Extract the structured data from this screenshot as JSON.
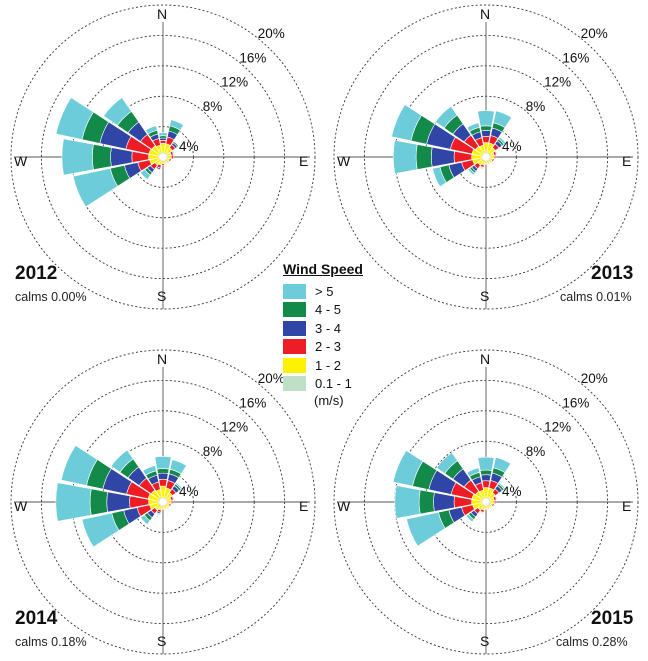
{
  "legend": {
    "title": "Wind Speed",
    "units": "(m/s)",
    "bins": [
      {
        "label": "> 5",
        "color": "#6cccd9"
      },
      {
        "label": "4 - 5",
        "color": "#138a4a"
      },
      {
        "label": "3 - 4",
        "color": "#2f46a6"
      },
      {
        "label": "2 - 3",
        "color": "#ee1c24"
      },
      {
        "label": "1 - 2",
        "color": "#fff200"
      },
      {
        "label": "0.1 - 1",
        "color": "#bfe0c5"
      }
    ]
  },
  "chart_data": [
    {
      "type": "windrose",
      "year": "2012",
      "calms": "calms 0.00%",
      "ring_labels": [
        "4%",
        "8%",
        "12%",
        "16%",
        "20%"
      ],
      "compass": [
        "N",
        "E",
        "S",
        "W"
      ],
      "rmax": 20,
      "directions": [
        "N",
        "NNE",
        "NE",
        "ENE",
        "E",
        "ESE",
        "SE",
        "SSE",
        "S",
        "SSW",
        "SW",
        "WSW",
        "W",
        "WNW",
        "NW",
        "NNW"
      ],
      "series": [
        {
          "name": "0.1 - 1",
          "values": [
            0.3,
            0.3,
            0.3,
            0.3,
            0.3,
            0.3,
            0.3,
            0.3,
            0.3,
            0.3,
            0.3,
            0.3,
            0.3,
            0.3,
            0.3,
            0.3
          ]
        },
        {
          "name": "1 - 2",
          "values": [
            1.5,
            1.5,
            1.2,
            0.8,
            0.8,
            0.6,
            0.6,
            0.6,
            0.6,
            0.8,
            1.0,
            1.5,
            1.6,
            1.6,
            1.5,
            1.3
          ]
        },
        {
          "name": "2 - 3",
          "values": [
            0.4,
            0.9,
            0.5,
            0.3,
            0.3,
            0.2,
            0.1,
            0.1,
            0.2,
            0.4,
            0.7,
            1.6,
            2.2,
            3.1,
            1.8,
            0.9
          ]
        },
        {
          "name": "3 - 4",
          "values": [
            0.3,
            0.8,
            0.3,
            0.1,
            0.0,
            0.0,
            0.0,
            0.0,
            0.0,
            0.2,
            0.5,
            1.8,
            2.8,
            3.5,
            2.0,
            0.6
          ]
        },
        {
          "name": "4 - 5",
          "values": [
            0.3,
            0.7,
            0.2,
            0.0,
            0.0,
            0.0,
            0.0,
            0.0,
            0.0,
            0.1,
            0.4,
            1.9,
            2.4,
            2.4,
            1.7,
            0.5
          ]
        },
        {
          "name": "> 5",
          "values": [
            0.4,
            0.8,
            0.1,
            0.0,
            0.0,
            0.0,
            0.0,
            0.0,
            0.0,
            0.1,
            0.7,
            5.0,
            4.0,
            3.5,
            2.2,
            0.6
          ]
        }
      ]
    },
    {
      "type": "windrose",
      "year": "2013",
      "calms": "calms 0.01%",
      "ring_labels": [
        "4%",
        "8%",
        "12%",
        "16%",
        "20%"
      ],
      "compass": [
        "N",
        "E",
        "S",
        "W"
      ],
      "rmax": 20,
      "directions": [
        "N",
        "NNE",
        "NE",
        "ENE",
        "E",
        "ESE",
        "SE",
        "SSE",
        "S",
        "SSW",
        "SW",
        "WSW",
        "W",
        "WNW",
        "NW",
        "NNW"
      ],
      "series": [
        {
          "name": "0.1 - 1",
          "values": [
            0.3,
            0.3,
            0.3,
            0.3,
            0.3,
            0.3,
            0.3,
            0.3,
            0.3,
            0.3,
            0.3,
            0.3,
            0.3,
            0.3,
            0.3,
            0.3
          ]
        },
        {
          "name": "1 - 2",
          "values": [
            1.6,
            1.6,
            1.2,
            0.8,
            0.8,
            0.6,
            0.6,
            0.6,
            0.6,
            0.8,
            1.0,
            1.5,
            1.6,
            1.6,
            1.4,
            1.3
          ]
        },
        {
          "name": "2 - 3",
          "values": [
            0.8,
            1.0,
            0.6,
            0.3,
            0.2,
            0.2,
            0.1,
            0.1,
            0.1,
            0.3,
            0.6,
            1.5,
            2.3,
            2.9,
            1.8,
            1.0
          ]
        },
        {
          "name": "3 - 4",
          "values": [
            0.8,
            1.0,
            0.5,
            0.1,
            0.0,
            0.0,
            0.0,
            0.0,
            0.0,
            0.1,
            0.4,
            1.7,
            3.0,
            3.2,
            1.8,
            0.8
          ]
        },
        {
          "name": "4 - 5",
          "values": [
            0.6,
            0.7,
            0.3,
            0.0,
            0.0,
            0.0,
            0.0,
            0.0,
            0.0,
            0.1,
            0.3,
            1.2,
            2.0,
            2.1,
            1.4,
            0.6
          ]
        },
        {
          "name": "> 5",
          "values": [
            2.0,
            1.6,
            0.3,
            0.0,
            0.0,
            0.0,
            0.0,
            0.0,
            0.0,
            0.1,
            0.3,
            1.0,
            3.0,
            2.6,
            1.4,
            0.6
          ]
        }
      ]
    },
    {
      "type": "windrose",
      "year": "2014",
      "calms": "calms 0.18%",
      "ring_labels": [
        "4%",
        "8%",
        "12%",
        "16%",
        "20%"
      ],
      "compass": [
        "N",
        "E",
        "S",
        "W"
      ],
      "rmax": 20,
      "directions": [
        "N",
        "NNE",
        "NE",
        "ENE",
        "E",
        "ESE",
        "SE",
        "SSE",
        "S",
        "SSW",
        "SW",
        "WSW",
        "W",
        "WNW",
        "NW",
        "NNW"
      ],
      "series": [
        {
          "name": "0.1 - 1",
          "values": [
            0.3,
            0.3,
            0.3,
            0.3,
            0.3,
            0.3,
            0.3,
            0.3,
            0.3,
            0.3,
            0.3,
            0.3,
            0.3,
            0.3,
            0.3,
            0.3
          ]
        },
        {
          "name": "1 - 2",
          "values": [
            1.8,
            1.6,
            1.2,
            0.8,
            0.8,
            0.6,
            0.6,
            0.6,
            0.6,
            0.8,
            1.0,
            1.5,
            1.6,
            1.7,
            1.6,
            1.4
          ]
        },
        {
          "name": "2 - 3",
          "values": [
            0.9,
            1.0,
            0.6,
            0.3,
            0.2,
            0.2,
            0.1,
            0.1,
            0.1,
            0.3,
            0.6,
            1.7,
            2.5,
            2.9,
            1.9,
            1.0
          ]
        },
        {
          "name": "3 - 4",
          "values": [
            0.8,
            0.9,
            0.5,
            0.1,
            0.0,
            0.0,
            0.0,
            0.0,
            0.0,
            0.2,
            0.6,
            1.8,
            3.0,
            3.2,
            1.8,
            0.9
          ]
        },
        {
          "name": "4 - 5",
          "values": [
            0.6,
            0.6,
            0.3,
            0.0,
            0.0,
            0.0,
            0.0,
            0.0,
            0.0,
            0.1,
            0.5,
            1.6,
            2.2,
            2.2,
            1.3,
            0.6
          ]
        },
        {
          "name": "> 5",
          "values": [
            1.6,
            1.3,
            0.2,
            0.0,
            0.0,
            0.0,
            0.0,
            0.0,
            0.0,
            0.1,
            0.6,
            4.0,
            4.5,
            3.4,
            1.4,
            0.7
          ]
        }
      ]
    },
    {
      "type": "windrose",
      "year": "2015",
      "calms": "calms 0.28%",
      "ring_labels": [
        "4%",
        "8%",
        "12%",
        "16%",
        "20%"
      ],
      "compass": [
        "N",
        "E",
        "S",
        "W"
      ],
      "rmax": 20,
      "directions": [
        "N",
        "NNE",
        "NE",
        "ENE",
        "E",
        "ESE",
        "SE",
        "SSE",
        "S",
        "SSW",
        "SW",
        "WSW",
        "W",
        "WNW",
        "NW",
        "NNW"
      ],
      "series": [
        {
          "name": "0.1 - 1",
          "values": [
            0.3,
            0.3,
            0.3,
            0.3,
            0.3,
            0.3,
            0.3,
            0.3,
            0.3,
            0.3,
            0.3,
            0.3,
            0.3,
            0.3,
            0.3,
            0.3
          ]
        },
        {
          "name": "1 - 2",
          "values": [
            1.6,
            1.6,
            1.2,
            0.8,
            0.8,
            0.6,
            0.6,
            0.6,
            0.6,
            0.8,
            1.0,
            1.5,
            1.6,
            1.6,
            1.4,
            1.3
          ]
        },
        {
          "name": "2 - 3",
          "values": [
            0.9,
            1.0,
            0.6,
            0.3,
            0.2,
            0.2,
            0.1,
            0.1,
            0.1,
            0.3,
            0.6,
            1.5,
            2.3,
            2.8,
            1.8,
            1.0
          ]
        },
        {
          "name": "3 - 4",
          "values": [
            0.8,
            1.0,
            0.5,
            0.1,
            0.0,
            0.0,
            0.0,
            0.0,
            0.0,
            0.1,
            0.5,
            1.7,
            2.7,
            3.0,
            1.8,
            0.8
          ]
        },
        {
          "name": "4 - 5",
          "values": [
            0.6,
            0.7,
            0.3,
            0.0,
            0.0,
            0.0,
            0.0,
            0.0,
            0.0,
            0.1,
            0.4,
            1.4,
            1.9,
            2.2,
            1.3,
            0.6
          ]
        },
        {
          "name": "> 5",
          "values": [
            1.7,
            1.4,
            0.2,
            0.0,
            0.0,
            0.0,
            0.0,
            0.0,
            0.0,
            0.1,
            0.4,
            4.3,
            3.2,
            2.6,
            1.3,
            0.6
          ]
        }
      ]
    }
  ]
}
